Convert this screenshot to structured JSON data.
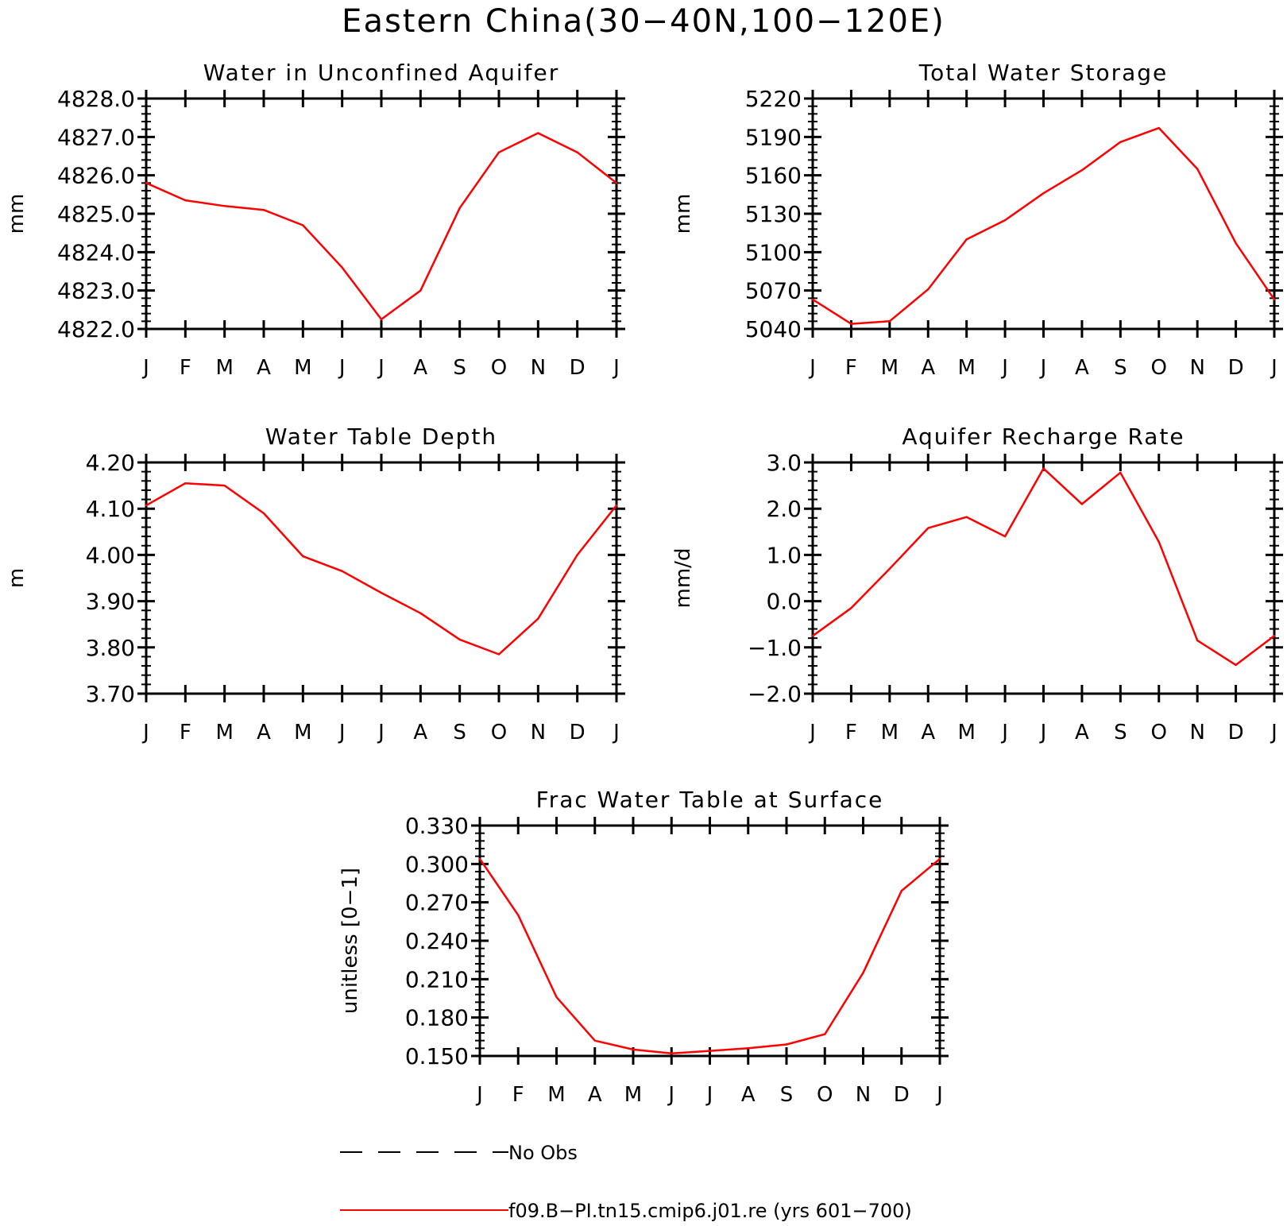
{
  "title": "Eastern China(30−40N,100−120E)",
  "chart_data": [
    {
      "type": "line",
      "title": "Water in Unconfined Aquifer",
      "ylabel": "mm",
      "categories": [
        "J",
        "F",
        "M",
        "A",
        "M",
        "J",
        "J",
        "A",
        "S",
        "O",
        "N",
        "D",
        "J"
      ],
      "ylim": [
        4822.0,
        4828.0
      ],
      "yticks": [
        "4822.0",
        "4823.0",
        "4824.0",
        "4825.0",
        "4826.0",
        "4827.0",
        "4828.0"
      ],
      "series": [
        {
          "values": [
            4825.8,
            4825.35,
            4825.2,
            4825.1,
            4824.7,
            4823.6,
            4822.25,
            4823.0,
            4825.15,
            4826.6,
            4827.1,
            4826.6,
            4825.8
          ],
          "color": "#ff0000"
        }
      ]
    },
    {
      "type": "line",
      "title": "Total Water Storage",
      "ylabel": "mm",
      "categories": [
        "J",
        "F",
        "M",
        "A",
        "M",
        "J",
        "J",
        "A",
        "S",
        "O",
        "N",
        "D",
        "J"
      ],
      "ylim": [
        5040,
        5220
      ],
      "yticks": [
        "5040",
        "5070",
        "5100",
        "5130",
        "5160",
        "5190",
        "5220"
      ],
      "series": [
        {
          "values": [
            5063,
            5044,
            5046,
            5071,
            5110,
            5125,
            5146,
            5164,
            5186,
            5197,
            5165,
            5107,
            5063
          ],
          "color": "#ff0000"
        }
      ]
    },
    {
      "type": "line",
      "title": "Water Table Depth",
      "ylabel": "m",
      "categories": [
        "J",
        "F",
        "M",
        "A",
        "M",
        "J",
        "J",
        "A",
        "S",
        "O",
        "N",
        "D",
        "J"
      ],
      "ylim": [
        3.7,
        4.2
      ],
      "yticks": [
        "3.70",
        "3.80",
        "3.90",
        "4.00",
        "4.10",
        "4.20"
      ],
      "series": [
        {
          "values": [
            4.107,
            4.155,
            4.15,
            4.09,
            3.997,
            3.965,
            3.918,
            3.874,
            3.817,
            3.785,
            3.862,
            4.0,
            4.107
          ],
          "color": "#ff0000"
        }
      ]
    },
    {
      "type": "line",
      "title": "Aquifer Recharge Rate",
      "ylabel": "mm/d",
      "categories": [
        "J",
        "F",
        "M",
        "A",
        "M",
        "J",
        "J",
        "A",
        "S",
        "O",
        "N",
        "D",
        "J"
      ],
      "ylim": [
        -2.0,
        3.0
      ],
      "yticks": [
        "−2.0",
        "−1.0",
        "0.0",
        "1.0",
        "2.0",
        "3.0"
      ],
      "series": [
        {
          "values": [
            -0.75,
            -0.15,
            0.7,
            1.58,
            1.82,
            1.4,
            2.87,
            2.1,
            2.78,
            1.28,
            -0.85,
            -1.38,
            -0.75
          ],
          "color": "#ff0000"
        }
      ]
    },
    {
      "type": "line",
      "title": "Frac Water Table at Surface",
      "ylabel": "unitless [0−1]",
      "categories": [
        "J",
        "F",
        "M",
        "A",
        "M",
        "J",
        "J",
        "A",
        "S",
        "O",
        "N",
        "D",
        "J"
      ],
      "ylim": [
        0.15,
        0.33
      ],
      "yticks": [
        "0.150",
        "0.180",
        "0.210",
        "0.240",
        "0.270",
        "0.300",
        "0.330"
      ],
      "series": [
        {
          "values": [
            0.304,
            0.26,
            0.196,
            0.162,
            0.155,
            0.152,
            0.154,
            0.156,
            0.159,
            0.167,
            0.215,
            0.279,
            0.304
          ],
          "color": "#ff0000"
        }
      ]
    }
  ],
  "legend": [
    {
      "label": "No Obs",
      "style": "dashed",
      "color": "#000000"
    },
    {
      "label": "f09.B−PI.tn15.cmip6.j01.re (yrs 601−700)",
      "style": "solid",
      "color": "#ff0000"
    }
  ]
}
